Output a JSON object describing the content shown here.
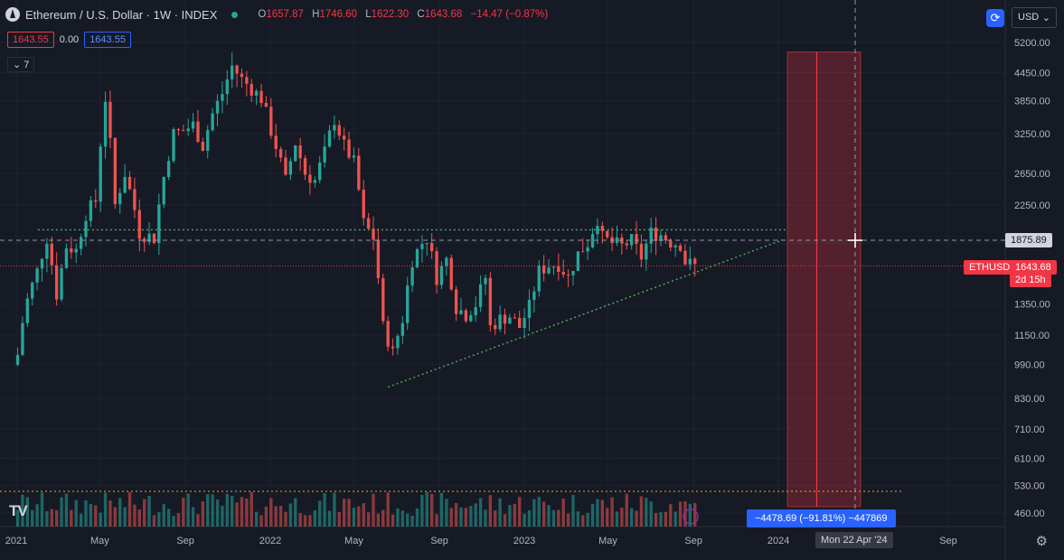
{
  "header": {
    "title": "Ethereum / U.S. Dollar · 1W · INDEX",
    "open_label": "O",
    "open": "1657.87",
    "high_label": "H",
    "high": "1746.60",
    "low_label": "L",
    "low": "1622.30",
    "close_label": "C",
    "close": "1643.68",
    "change": "−14.47 (−0.87%)"
  },
  "badges": {
    "bid": "1643.55",
    "spread": "0.00",
    "ask": "1643.55"
  },
  "indicator_count": "7",
  "currency": "USD",
  "colors": {
    "bg": "#161a25",
    "up": "#26a69a",
    "down": "#ef5350",
    "price_line": "#f23645",
    "resistance": "#4caf50",
    "volume_level": "#f5a623",
    "measure": "#2962ff"
  },
  "labels": {
    "crosshair_price": "1875.89",
    "last_symbol": "ETHUSD",
    "last_price": "1643.68",
    "countdown": "2d 15h",
    "measure": "−4478.69 (−91.81%) −447869",
    "crosshair_date": "Mon 22 Apr '24"
  },
  "chart_data": {
    "type": "candlestick",
    "scale": "log",
    "y_ticks": [
      5200,
      4450,
      3850,
      3250,
      2650,
      2250,
      1850,
      1350,
      1150,
      990,
      830,
      710,
      610,
      530,
      460
    ],
    "x_ticks": [
      {
        "label": "2021",
        "date": "2021-01-01"
      },
      {
        "label": "May",
        "date": "2021-05-01"
      },
      {
        "label": "Sep",
        "date": "2021-09-01"
      },
      {
        "label": "2022",
        "date": "2022-01-01"
      },
      {
        "label": "May",
        "date": "2022-05-01"
      },
      {
        "label": "Sep",
        "date": "2022-09-01"
      },
      {
        "label": "2023",
        "date": "2023-01-01"
      },
      {
        "label": "May",
        "date": "2023-05-01"
      },
      {
        "label": "Sep",
        "date": "2023-09-01"
      },
      {
        "label": "2024",
        "date": "2024-01-01"
      },
      {
        "label": "Sep",
        "date": "2024-09-01"
      }
    ],
    "close_path": [
      [
        "2021-01-03",
        1040
      ],
      [
        "2021-01-10",
        1230
      ],
      [
        "2021-01-17",
        1380
      ],
      [
        "2021-01-31",
        1600
      ],
      [
        "2021-02-14",
        1900
      ],
      [
        "2021-02-28",
        1420
      ],
      [
        "2021-03-14",
        1820
      ],
      [
        "2021-03-28",
        1780
      ],
      [
        "2021-04-11",
        2150
      ],
      [
        "2021-04-25",
        2300
      ],
      [
        "2021-05-09",
        3900
      ],
      [
        "2021-05-23",
        2250
      ],
      [
        "2021-06-06",
        2650
      ],
      [
        "2021-06-20",
        2200
      ],
      [
        "2021-06-27",
        1950
      ],
      [
        "2021-07-18",
        1900
      ],
      [
        "2021-08-01",
        2600
      ],
      [
        "2021-08-15",
        3250
      ],
      [
        "2021-08-29",
        3300
      ],
      [
        "2021-09-12",
        3400
      ],
      [
        "2021-09-26",
        3050
      ],
      [
        "2021-10-10",
        3600
      ],
      [
        "2021-10-24",
        4000
      ],
      [
        "2021-11-07",
        4600
      ],
      [
        "2021-11-21",
        4300
      ],
      [
        "2021-12-05",
        4100
      ],
      [
        "2021-12-19",
        3900
      ],
      [
        "2022-01-02",
        3300
      ],
      [
        "2022-01-16",
        2800
      ],
      [
        "2022-01-23",
        2550
      ],
      [
        "2022-02-06",
        3100
      ],
      [
        "2022-02-20",
        2650
      ],
      [
        "2022-03-06",
        2550
      ],
      [
        "2022-03-20",
        2950
      ],
      [
        "2022-04-03",
        3500
      ],
      [
        "2022-04-17",
        3050
      ],
      [
        "2022-05-01",
        2800
      ],
      [
        "2022-05-15",
        2050
      ],
      [
        "2022-05-29",
        1900
      ],
      [
        "2022-06-12",
        1200
      ],
      [
        "2022-06-26",
        1050
      ],
      [
        "2022-07-10",
        1250
      ],
      [
        "2022-07-24",
        1700
      ],
      [
        "2022-08-07",
        1850
      ],
      [
        "2022-08-14",
        1900
      ],
      [
        "2022-08-28",
        1550
      ],
      [
        "2022-09-11",
        1700
      ],
      [
        "2022-09-25",
        1330
      ],
      [
        "2022-10-09",
        1280
      ],
      [
        "2022-10-23",
        1350
      ],
      [
        "2022-11-06",
        1550
      ],
      [
        "2022-11-13",
        1200
      ],
      [
        "2022-11-27",
        1250
      ],
      [
        "2022-12-11",
        1270
      ],
      [
        "2022-12-25",
        1200
      ],
      [
        "2023-01-08",
        1330
      ],
      [
        "2023-01-22",
        1600
      ],
      [
        "2023-02-05",
        1650
      ],
      [
        "2023-02-19",
        1660
      ],
      [
        "2023-03-05",
        1550
      ],
      [
        "2023-03-19",
        1750
      ],
      [
        "2023-04-02",
        1850
      ],
      [
        "2023-04-16",
        2100
      ],
      [
        "2023-04-23",
        1900
      ],
      [
        "2023-05-07",
        1850
      ],
      [
        "2023-05-21",
        1820
      ],
      [
        "2023-06-04",
        1870
      ],
      [
        "2023-06-18",
        1720
      ],
      [
        "2023-07-02",
        1950
      ],
      [
        "2023-07-16",
        1930
      ],
      [
        "2023-07-30",
        1860
      ],
      [
        "2023-08-13",
        1840
      ],
      [
        "2023-08-20",
        1680
      ],
      [
        "2023-08-27",
        1660
      ],
      [
        "2023-09-03",
        1643.68
      ]
    ],
    "lines": {
      "resistance": 1980,
      "support_start": [
        "2022-06-19",
        880
      ],
      "support_end": [
        "2024-01-07",
        1880
      ],
      "last_price": 1643.68,
      "crosshair": 1875.89,
      "volume_level_note": "horizontal dotted level over volume pane"
    },
    "highlight": {
      "from": "2024-01-14",
      "to": "2024-04-28",
      "line": "2024-02-25",
      "top": 4950
    }
  }
}
